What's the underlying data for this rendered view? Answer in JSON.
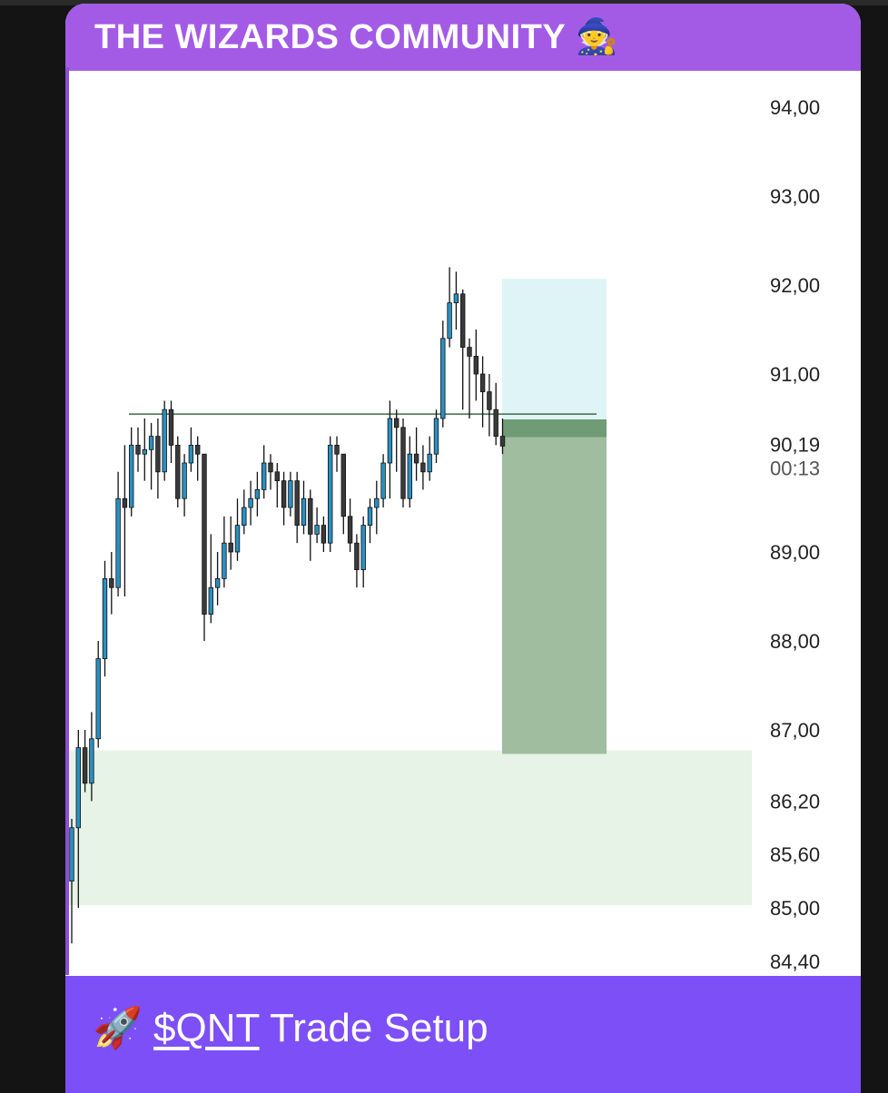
{
  "header": {
    "title": "THE WIZARDS COMMUNITY",
    "emoji": "🧙"
  },
  "footer": {
    "emoji": "🚀",
    "ticker": "$QNT",
    "text": " Trade Setup"
  },
  "colors": {
    "header": "#a35be6",
    "footer": "#7d4ff7",
    "bull": "#2b8fc0",
    "bear": "#3a3a3a",
    "target_box": "#dff4f7",
    "stop_band": "#6f9b75",
    "risk_box": "#a0bd9f",
    "demand_zone": "#e6f3e6",
    "resistance_line": "#3f6b45"
  },
  "chart_data": {
    "type": "candlestick",
    "ylim": [
      84.2,
      94.4
    ],
    "y_ticks": [
      {
        "value": 94.0,
        "label": "94,00"
      },
      {
        "value": 93.0,
        "label": "93,00"
      },
      {
        "value": 92.0,
        "label": "92,00"
      },
      {
        "value": 91.0,
        "label": "91,00"
      },
      {
        "value": 89.0,
        "label": "89,00"
      },
      {
        "value": 88.0,
        "label": "88,00"
      },
      {
        "value": 87.0,
        "label": "87,00"
      },
      {
        "value": 86.2,
        "label": "86,20"
      },
      {
        "value": 85.6,
        "label": "85,60"
      },
      {
        "value": 85.0,
        "label": "85,00"
      },
      {
        "value": 84.4,
        "label": "84,40"
      }
    ],
    "current_price": {
      "value": 90.19,
      "label": "90,19",
      "countdown": "00:13"
    },
    "resistance_line": 90.55,
    "target_zone": [
      90.49,
      92.07
    ],
    "entry_band": [
      90.29,
      90.49
    ],
    "risk_zone": [
      86.73,
      90.29
    ],
    "demand_zone": [
      85.03,
      86.77
    ],
    "candles_ohlc": [
      [
        85.3,
        86.0,
        84.6,
        85.9
      ],
      [
        85.9,
        87.0,
        85.0,
        86.8
      ],
      [
        86.8,
        87.0,
        86.3,
        86.4
      ],
      [
        86.4,
        87.2,
        86.2,
        86.9
      ],
      [
        86.9,
        88.0,
        86.8,
        87.8
      ],
      [
        87.8,
        88.9,
        87.6,
        88.7
      ],
      [
        88.7,
        89.0,
        88.3,
        88.6
      ],
      [
        88.6,
        89.9,
        88.5,
        89.6
      ],
      [
        89.6,
        90.2,
        88.5,
        89.5
      ],
      [
        89.5,
        90.4,
        89.4,
        90.2
      ],
      [
        90.2,
        90.4,
        89.9,
        90.1
      ],
      [
        90.1,
        90.5,
        89.8,
        90.15
      ],
      [
        90.15,
        90.45,
        89.7,
        90.3
      ],
      [
        90.3,
        90.5,
        89.6,
        89.9
      ],
      [
        89.9,
        90.7,
        89.8,
        90.6
      ],
      [
        90.6,
        90.7,
        90.0,
        90.2
      ],
      [
        90.2,
        90.3,
        89.5,
        89.6
      ],
      [
        89.6,
        90.1,
        89.4,
        90.0
      ],
      [
        90.0,
        90.4,
        89.9,
        90.2
      ],
      [
        90.2,
        90.3,
        89.8,
        90.1
      ],
      [
        90.1,
        90.1,
        88.0,
        88.3
      ],
      [
        88.3,
        89.2,
        88.2,
        88.6
      ],
      [
        88.6,
        89.0,
        88.4,
        88.7
      ],
      [
        88.7,
        89.4,
        88.6,
        89.1
      ],
      [
        89.1,
        89.4,
        88.8,
        89.0
      ],
      [
        89.0,
        89.6,
        88.9,
        89.3
      ],
      [
        89.3,
        89.7,
        89.2,
        89.5
      ],
      [
        89.5,
        89.8,
        89.3,
        89.6
      ],
      [
        89.6,
        89.9,
        89.4,
        89.7
      ],
      [
        89.7,
        90.2,
        89.6,
        90.0
      ],
      [
        90.0,
        90.1,
        89.7,
        89.9
      ],
      [
        89.9,
        90.0,
        89.5,
        89.8
      ],
      [
        89.8,
        89.9,
        89.3,
        89.5
      ],
      [
        89.5,
        89.9,
        89.4,
        89.8
      ],
      [
        89.8,
        89.9,
        89.1,
        89.3
      ],
      [
        89.3,
        89.8,
        89.2,
        89.6
      ],
      [
        89.6,
        89.7,
        88.9,
        89.2
      ],
      [
        89.2,
        89.5,
        89.1,
        89.3
      ],
      [
        89.3,
        89.4,
        89.0,
        89.1
      ],
      [
        89.1,
        90.3,
        89.0,
        90.2
      ],
      [
        90.2,
        90.3,
        89.9,
        90.1
      ],
      [
        90.1,
        90.1,
        89.2,
        89.4
      ],
      [
        89.4,
        89.6,
        89.0,
        89.1
      ],
      [
        89.1,
        89.2,
        88.6,
        88.8
      ],
      [
        88.8,
        89.4,
        88.6,
        89.3
      ],
      [
        89.3,
        89.6,
        89.1,
        89.5
      ],
      [
        89.5,
        89.8,
        89.2,
        89.6
      ],
      [
        89.6,
        90.1,
        89.5,
        90.0
      ],
      [
        90.0,
        90.7,
        89.6,
        90.5
      ],
      [
        90.5,
        90.6,
        89.9,
        90.4
      ],
      [
        90.4,
        90.5,
        89.5,
        89.6
      ],
      [
        89.6,
        90.3,
        89.5,
        90.1
      ],
      [
        90.1,
        90.4,
        89.8,
        90.0
      ],
      [
        90.0,
        90.2,
        89.7,
        89.9
      ],
      [
        89.9,
        90.3,
        89.8,
        90.1
      ],
      [
        90.1,
        90.6,
        90.0,
        90.5
      ],
      [
        90.5,
        91.6,
        90.4,
        91.4
      ],
      [
        91.4,
        92.2,
        91.3,
        91.8
      ],
      [
        91.8,
        92.15,
        91.5,
        91.9
      ],
      [
        91.9,
        91.95,
        90.6,
        91.3
      ],
      [
        91.3,
        91.4,
        90.5,
        91.2
      ],
      [
        91.2,
        91.5,
        90.7,
        91.0
      ],
      [
        91.0,
        91.2,
        90.4,
        90.8
      ],
      [
        90.8,
        91.0,
        90.3,
        90.6
      ],
      [
        90.6,
        90.9,
        90.2,
        90.3
      ],
      [
        90.3,
        90.5,
        90.1,
        90.19
      ]
    ]
  }
}
